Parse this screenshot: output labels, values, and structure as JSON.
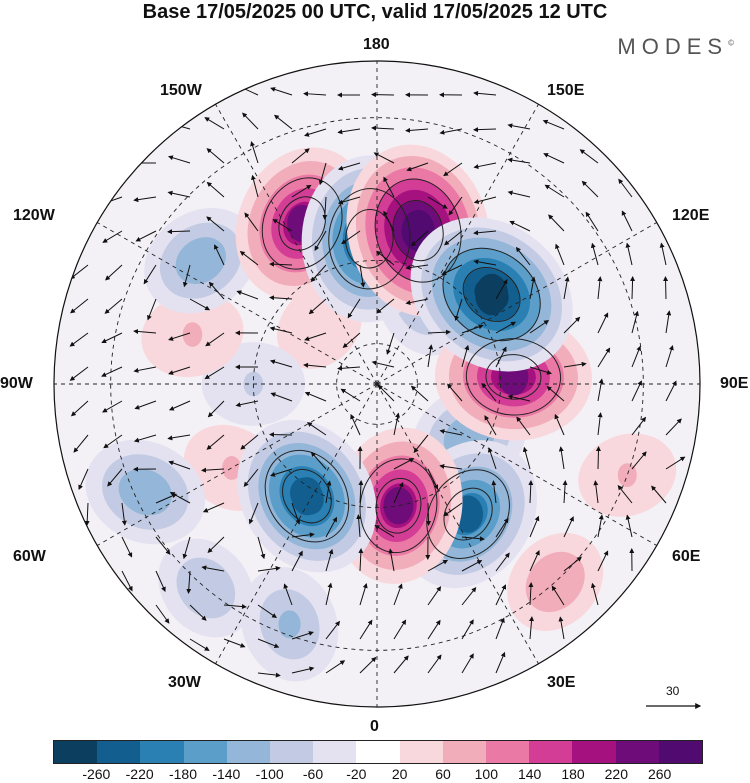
{
  "title": "Base 17/05/2025 00 UTC, valid 17/05/2025 12 UTC",
  "brand": {
    "name": "MODES",
    "mark": "©"
  },
  "labels": {
    "top": "180",
    "bottom": "0",
    "left": "90W",
    "right": "90E",
    "nw_upper": "150W",
    "nw_lower": "120W",
    "ne_upper": "150E",
    "ne_lower": "120E",
    "sw_upper": "60W",
    "sw_lower": "30W",
    "se_upper": "60E",
    "se_lower": "30E"
  },
  "wind_scale": {
    "value": "30"
  },
  "colorbar": {
    "colors": [
      "#0b3e5f",
      "#125e8f",
      "#2a7fb3",
      "#5b9ec9",
      "#94b6d8",
      "#c2cbe3",
      "#e4e2f0",
      "#ffffff",
      "#f8d8dc",
      "#f2adbb",
      "#eb79a6",
      "#d43d95",
      "#a5127f",
      "#6e0c79",
      "#500a70"
    ],
    "ticks": [
      "-260",
      "-220",
      "-180",
      "-140",
      "-100",
      "-60",
      "-20",
      "20",
      "60",
      "100",
      "140",
      "180",
      "220",
      "260"
    ]
  },
  "anomalies": [
    {
      "lon": 165,
      "lat": 52,
      "value": 280
    },
    {
      "lon": -155,
      "lat": 48,
      "value": 230
    },
    {
      "lon": -177,
      "lat": 55,
      "value": -260
    },
    {
      "lon": 128,
      "lat": 55,
      "value": -280
    },
    {
      "lon": 93,
      "lat": 57,
      "value": 230
    },
    {
      "lon": 60,
      "lat": 64,
      "value": -120
    },
    {
      "lon": 35,
      "lat": 52,
      "value": -230
    },
    {
      "lon": 10,
      "lat": 60,
      "value": 230
    },
    {
      "lon": 42,
      "lat": 30,
      "value": 80
    },
    {
      "lon": -32,
      "lat": 58,
      "value": -240
    },
    {
      "lon": -60,
      "lat": 50,
      "value": 60
    },
    {
      "lon": -90,
      "lat": 60,
      "value": -70
    },
    {
      "lon": -105,
      "lat": 45,
      "value": 70
    },
    {
      "lon": -125,
      "lat": 40,
      "value": -120
    },
    {
      "lon": -40,
      "lat": 30,
      "value": -80
    },
    {
      "lon": 70,
      "lat": 30,
      "value": 60
    },
    {
      "lon": -20,
      "lat": 32,
      "value": -110
    },
    {
      "lon": -65,
      "lat": 32,
      "value": -130
    },
    {
      "lon": 150,
      "lat": 67,
      "value": -90
    },
    {
      "lon": -135,
      "lat": 70,
      "value": 40
    }
  ]
}
